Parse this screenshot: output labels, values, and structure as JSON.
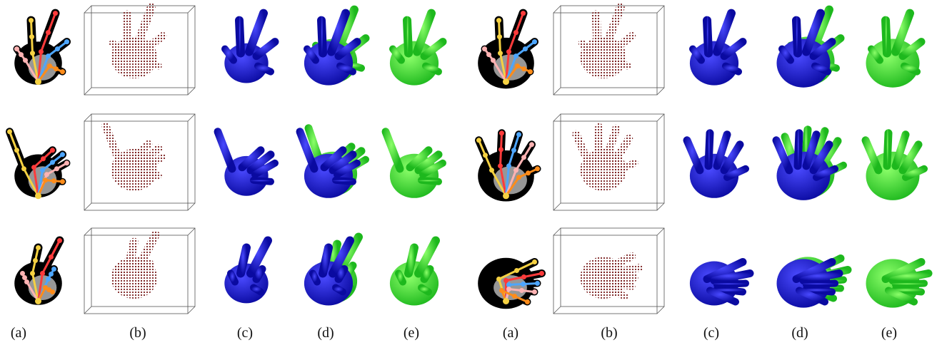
{
  "figure": {
    "captions": [
      {
        "label": "(a)"
      },
      {
        "label": "(b)"
      },
      {
        "label": "(c)"
      },
      {
        "label": "(d)"
      },
      {
        "label": "(e)"
      },
      {
        "label": "(a)"
      },
      {
        "label": "(b)"
      },
      {
        "label": "(c)"
      },
      {
        "label": "(d)"
      },
      {
        "label": "(e)"
      }
    ],
    "colors": {
      "prediction_mesh": "#1a1ae6",
      "ground_truth_mesh": "#33e633",
      "point_cloud": "#7a1f1f",
      "depth_background": "#000000",
      "bounding_box": "#555555"
    },
    "skeleton_colors": [
      "#f5d142",
      "#ff3b3b",
      "#4da6ff",
      "#ffb3b3",
      "#ff8c1a",
      "#66dd55",
      "#ff44cc",
      "#c0c0ff"
    ]
  }
}
